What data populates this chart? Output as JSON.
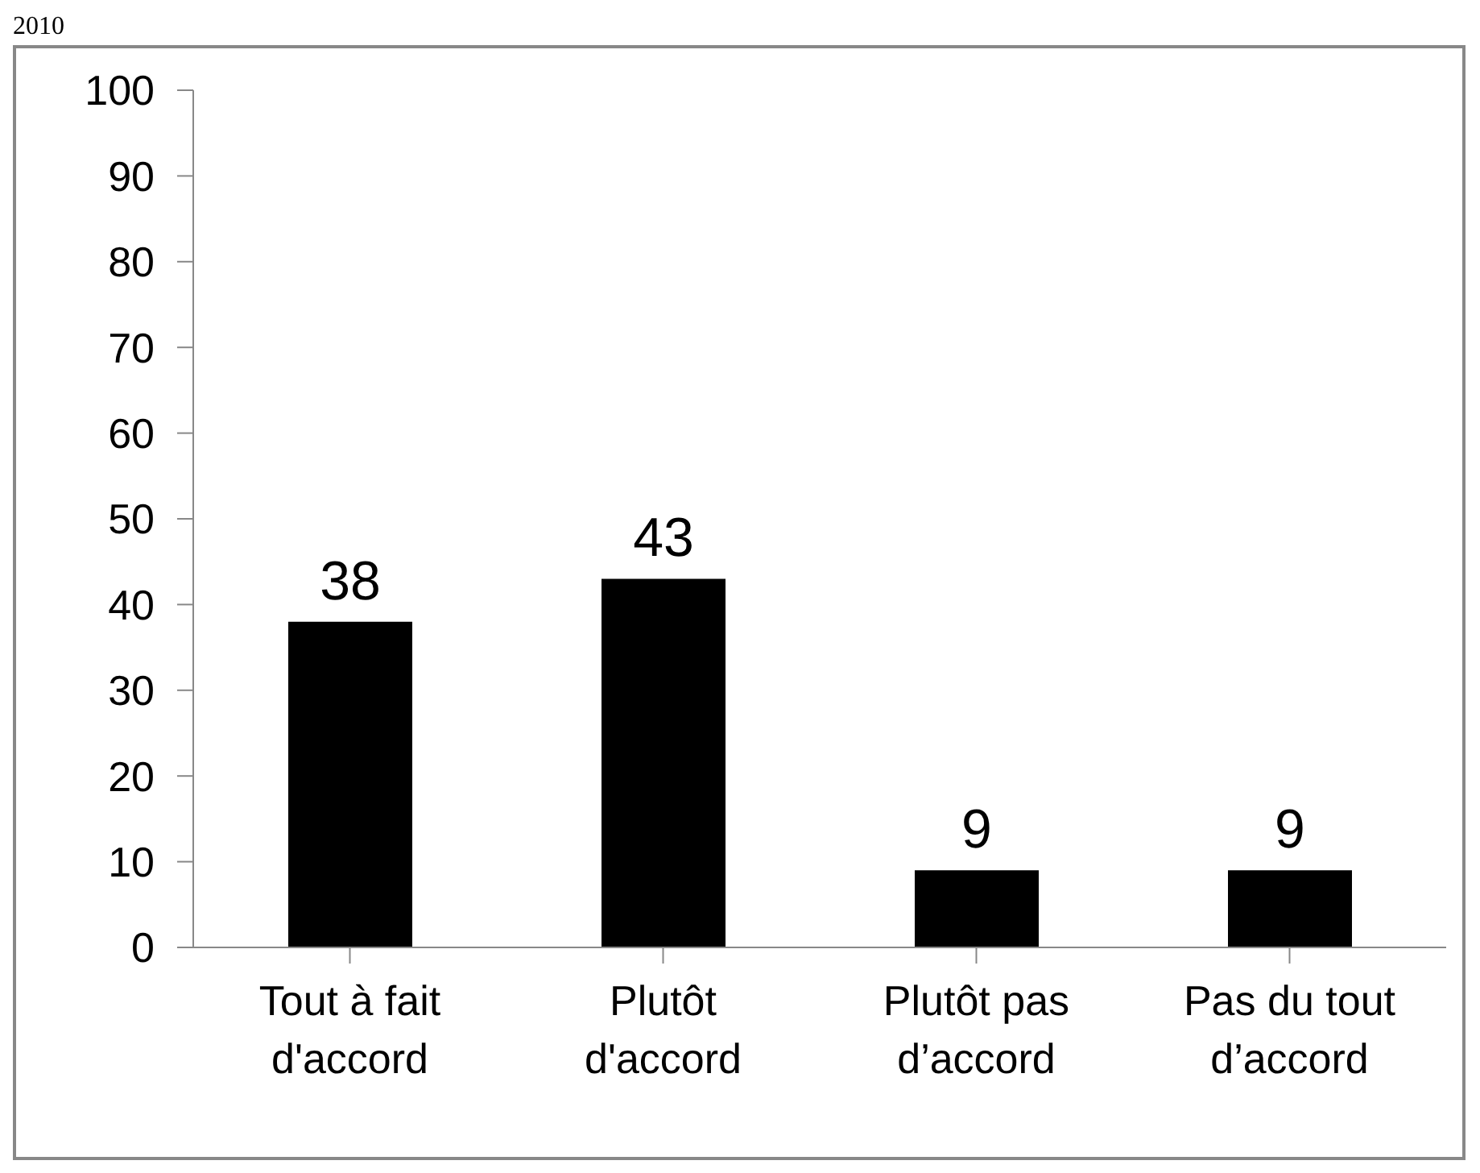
{
  "chart_data": {
    "type": "bar",
    "annotations": [
      "2010"
    ],
    "categories": [
      "Tout à fait d'accord",
      "Plutôt d'accord",
      "Plutôt pas d’accord",
      "Pas du tout d’accord"
    ],
    "values": [
      38,
      43,
      9,
      9
    ],
    "color": "#000000",
    "ylim": [
      0,
      100
    ],
    "yticks": [
      0,
      10,
      20,
      30,
      40,
      50,
      60,
      70,
      80,
      90,
      100
    ],
    "grid": false,
    "data_labels": true,
    "legend": false
  }
}
